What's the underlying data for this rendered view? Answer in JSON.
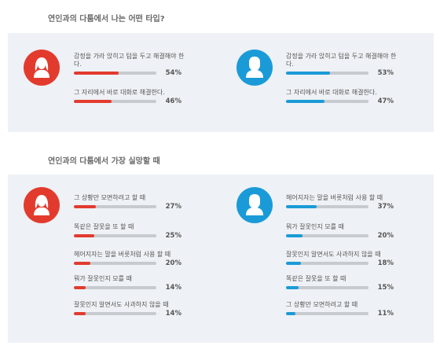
{
  "colors": {
    "female": "#e23b2e",
    "male": "#1a9bd7",
    "track": "#c7cace",
    "panel": "#eef1f5"
  },
  "chart_data": [
    {
      "type": "bar",
      "title": "연인과의 다툼에서 나는 어떤 타입?",
      "groups": [
        {
          "icon": "female-avatar-icon",
          "color": "#e23b2e",
          "items": [
            {
              "label": "감정을 가라 앉히고 텀을 두고 해결해야 한\n다.",
              "value": 54,
              "display": "54%"
            },
            {
              "label": "그 자리에서 바로 대화로 해결한다.",
              "value": 46,
              "display": "46%"
            }
          ]
        },
        {
          "icon": "male-avatar-icon",
          "color": "#1a9bd7",
          "items": [
            {
              "label": "감정을 가라 앉히고 텀을 두고 해결해야 한\n다.",
              "value": 53,
              "display": "53%"
            },
            {
              "label": "그 자리에서 바로 대화로 해결한다.",
              "value": 47,
              "display": "47%"
            }
          ]
        }
      ]
    },
    {
      "type": "bar",
      "title": "연인과의 다툼에서 가장 실망할 때",
      "groups": [
        {
          "icon": "female-avatar-icon",
          "color": "#e23b2e",
          "items": [
            {
              "label": "그 상황만 모면하려고 할 때",
              "value": 27,
              "display": "27%"
            },
            {
              "label": "똑같은 잘못을 또 할 때",
              "value": 25,
              "display": "25%"
            },
            {
              "label": "헤어지자는 말을 버릇처럼 사용 할 때",
              "value": 20,
              "display": "20%"
            },
            {
              "label": "뭐가 잘못인지 모를 때",
              "value": 14,
              "display": "14%"
            },
            {
              "label": "잘못인지 알면서도 사과하지 않을 때",
              "value": 14,
              "display": "14%"
            }
          ]
        },
        {
          "icon": "male-avatar-icon",
          "color": "#1a9bd7",
          "items": [
            {
              "label": "헤어지자는 말을 버릇처럼 사용 할 때",
              "value": 37,
              "display": "37%"
            },
            {
              "label": "뭐가 잘못인지 모를 때",
              "value": 20,
              "display": "20%"
            },
            {
              "label": "잘못인지 알면서도 사과하지 않을 때",
              "value": 18,
              "display": "18%"
            },
            {
              "label": "똑같은 잘못을 또 할 때",
              "value": 15,
              "display": "15%"
            },
            {
              "label": "그 상황만 모면하려고 할 때",
              "value": 11,
              "display": "11%"
            }
          ]
        }
      ]
    }
  ]
}
